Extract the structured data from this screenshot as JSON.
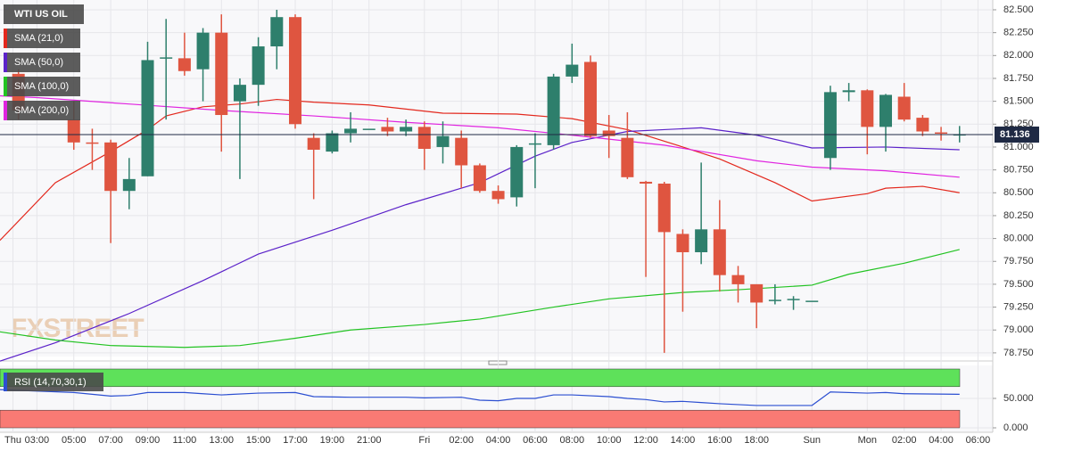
{
  "chart_data": [
    {
      "type": "candlestick",
      "title": "WTI US OIL",
      "watermark": "FXSTREET",
      "up_color": "#2e7f6c",
      "down_color": "#df5540",
      "x": [
        0,
        3,
        4,
        5,
        6,
        7,
        8,
        9,
        10,
        11,
        12,
        13,
        14,
        15,
        16,
        17,
        18,
        19,
        20,
        21,
        22,
        23,
        24,
        25,
        26,
        27,
        28,
        29,
        30,
        31,
        32,
        33,
        34,
        35,
        36,
        37,
        38,
        39,
        40,
        41,
        42,
        43,
        44,
        45,
        46,
        47,
        48,
        49,
        50,
        51
      ],
      "open": [
        81.8,
        81.3,
        81.05,
        81.05,
        80.52,
        80.68,
        81.97,
        81.97,
        81.85,
        82.25,
        81.5,
        81.68,
        82.1,
        82.42,
        81.1,
        80.95,
        81.15,
        81.2,
        81.22,
        81.17,
        81.22,
        81.0,
        81.1,
        80.8,
        80.52,
        80.45,
        81.03,
        81.02,
        81.77,
        81.93,
        81.18,
        81.1,
        80.62,
        80.6,
        80.05,
        79.85,
        80.1,
        79.6,
        79.5,
        79.32,
        79.33,
        79.32,
        80.88,
        81.6,
        81.62,
        81.22,
        81.55,
        81.32,
        81.16,
        81.13
      ],
      "high": [
        81.85,
        81.5,
        81.2,
        81.08,
        80.88,
        82.15,
        82.4,
        82.25,
        82.3,
        82.45,
        81.75,
        82.2,
        82.5,
        82.45,
        81.15,
        81.18,
        81.38,
        81.2,
        81.32,
        81.3,
        81.28,
        81.28,
        81.18,
        80.82,
        80.58,
        81.02,
        81.15,
        81.8,
        82.13,
        82.0,
        81.35,
        81.38,
        80.63,
        80.62,
        80.1,
        80.83,
        80.42,
        79.7,
        79.5,
        79.5,
        79.37,
        79.32,
        81.67,
        81.7,
        81.63,
        81.58,
        81.7,
        81.35,
        81.22,
        81.23
      ],
      "low": [
        81.3,
        80.97,
        80.75,
        79.95,
        80.32,
        80.68,
        81.3,
        81.78,
        81.5,
        80.95,
        80.65,
        81.45,
        81.85,
        81.2,
        80.43,
        80.93,
        81.05,
        81.2,
        81.12,
        81.12,
        80.75,
        80.82,
        80.55,
        80.5,
        80.38,
        80.35,
        80.55,
        80.97,
        81.7,
        81.1,
        80.88,
        80.65,
        79.58,
        78.75,
        79.2,
        79.72,
        79.42,
        79.3,
        79.02,
        79.28,
        79.22,
        79.32,
        80.75,
        81.5,
        80.92,
        80.95,
        81.28,
        81.12,
        81.07,
        81.05
      ],
      "close": [
        81.4,
        81.05,
        81.04,
        80.52,
        80.65,
        81.95,
        81.98,
        81.83,
        82.25,
        81.35,
        81.68,
        82.1,
        82.42,
        81.25,
        80.97,
        81.15,
        81.2,
        81.2,
        81.17,
        81.22,
        80.98,
        81.12,
        80.8,
        80.52,
        80.43,
        81.0,
        81.04,
        81.77,
        81.9,
        81.12,
        81.12,
        80.67,
        80.6,
        80.07,
        79.85,
        80.1,
        79.6,
        79.5,
        79.3,
        79.33,
        79.34,
        79.32,
        81.6,
        81.62,
        81.22,
        81.57,
        81.3,
        81.17,
        81.15,
        81.14
      ],
      "series": [
        {
          "name": "SMA (21,0)",
          "color": "#e3281d",
          "x": [
            -1,
            2,
            5,
            7,
            8,
            10,
            12,
            14,
            16,
            19,
            23,
            27,
            30,
            33,
            36,
            38,
            41,
            43,
            46,
            47,
            49,
            51
          ],
          "values": [
            79.98,
            80.61,
            80.95,
            81.19,
            81.34,
            81.44,
            81.47,
            81.52,
            81.49,
            81.46,
            81.37,
            81.36,
            81.31,
            81.19,
            81.0,
            80.87,
            80.61,
            80.41,
            80.49,
            80.55,
            80.57,
            80.5
          ]
        },
        {
          "name": "SMA (50,0)",
          "color": "#5b22c9",
          "x": [
            -1,
            2,
            6,
            10,
            13,
            17,
            21,
            25,
            28,
            30,
            33,
            35,
            37,
            40,
            43,
            47,
            51
          ],
          "values": [
            78.66,
            78.86,
            79.18,
            79.54,
            79.83,
            80.09,
            80.37,
            80.61,
            80.9,
            81.05,
            81.17,
            81.19,
            81.21,
            81.13,
            80.99,
            81.0,
            80.97
          ]
        },
        {
          "name": "SMA (100,0)",
          "color": "#22c322",
          "x": [
            -1,
            2,
            5,
            9,
            12,
            15,
            18,
            22,
            25,
            29,
            32,
            36,
            39,
            43,
            45,
            48,
            51
          ],
          "values": [
            78.98,
            78.89,
            78.83,
            78.81,
            78.83,
            78.91,
            79.0,
            79.06,
            79.12,
            79.25,
            79.34,
            79.41,
            79.44,
            79.49,
            79.61,
            79.73,
            79.88
          ]
        },
        {
          "name": "SMA (200,0)",
          "color": "#e024e0",
          "x": [
            -1,
            1,
            6,
            11,
            16,
            21,
            26,
            30,
            35,
            40,
            43,
            47,
            51
          ],
          "values": [
            81.56,
            81.54,
            81.47,
            81.4,
            81.34,
            81.27,
            81.21,
            81.13,
            81.02,
            80.85,
            80.78,
            80.74,
            80.67
          ]
        }
      ],
      "last_price": {
        "value": 81.136,
        "label": "81.136"
      },
      "last_price_color": "#1f2a44",
      "xlim": [
        -1,
        52.8
      ],
      "ylim": [
        78.71,
        82.607
      ],
      "yticks": [
        {
          "value": 82.5,
          "label": "82.500"
        },
        {
          "value": 82.25,
          "label": "82.250"
        },
        {
          "value": 82.0,
          "label": "82.000"
        },
        {
          "value": 81.75,
          "label": "81.750"
        },
        {
          "value": 81.5,
          "label": "81.500"
        },
        {
          "value": 81.25,
          "label": "81.250"
        },
        {
          "value": 81.0,
          "label": "81.000"
        },
        {
          "value": 80.75,
          "label": "80.750"
        },
        {
          "value": 80.5,
          "label": "80.500"
        },
        {
          "value": 80.25,
          "label": "80.250"
        },
        {
          "value": 80.0,
          "label": "80.000"
        },
        {
          "value": 79.75,
          "label": "79.750"
        },
        {
          "value": 79.5,
          "label": "79.500"
        },
        {
          "value": 79.25,
          "label": "79.250"
        },
        {
          "value": 79.0,
          "label": "79.000"
        },
        {
          "value": 78.75,
          "label": "78.750"
        }
      ],
      "xticks": [
        {
          "value": -0.3,
          "label": "Thu"
        },
        {
          "value": 1,
          "label": "03:00"
        },
        {
          "value": 3,
          "label": "05:00"
        },
        {
          "value": 5,
          "label": "07:00"
        },
        {
          "value": 7,
          "label": "09:00"
        },
        {
          "value": 9,
          "label": "11:00"
        },
        {
          "value": 11,
          "label": "13:00"
        },
        {
          "value": 13,
          "label": "15:00"
        },
        {
          "value": 15,
          "label": "17:00"
        },
        {
          "value": 17,
          "label": "19:00"
        },
        {
          "value": 19,
          "label": "21:00"
        },
        {
          "value": 22,
          "label": "Fri"
        },
        {
          "value": 24,
          "label": "02:00"
        },
        {
          "value": 26,
          "label": "04:00"
        },
        {
          "value": 28,
          "label": "06:00"
        },
        {
          "value": 30,
          "label": "08:00"
        },
        {
          "value": 32,
          "label": "10:00"
        },
        {
          "value": 34,
          "label": "12:00"
        },
        {
          "value": 36,
          "label": "14:00"
        },
        {
          "value": 38,
          "label": "16:00"
        },
        {
          "value": 40,
          "label": "18:00"
        },
        {
          "value": 43,
          "label": "Sun"
        },
        {
          "value": 46,
          "label": "Mon"
        },
        {
          "value": 48,
          "label": "02:00"
        },
        {
          "value": 50,
          "label": "04:00"
        },
        {
          "value": 52,
          "label": "06:00"
        }
      ],
      "grid": true
    },
    {
      "type": "line",
      "series": [
        {
          "name": "RSI (14,70,30,1)",
          "color": "#2c4fd1",
          "x": [
            -1,
            3,
            5,
            6,
            7,
            9,
            10,
            11,
            13,
            15,
            16,
            18,
            21,
            22,
            24,
            25,
            26,
            27,
            28,
            29,
            30,
            32,
            33,
            34,
            35,
            36,
            37,
            38,
            40,
            43,
            44,
            46,
            47,
            48,
            51
          ],
          "values": [
            65,
            60,
            54,
            55,
            60,
            60,
            58,
            56,
            59,
            60,
            53,
            52,
            52,
            51,
            52,
            47,
            46,
            50,
            50,
            56,
            56,
            53,
            50,
            48,
            44,
            45,
            43,
            41,
            38,
            38,
            61,
            59,
            60,
            58,
            57
          ]
        }
      ],
      "overbought": 70,
      "oversold": 30,
      "overbought_color": "#5ee15a",
      "oversold_color": "#f97a74",
      "xlim": [
        -1,
        52.8
      ],
      "ylim": [
        0,
        100
      ],
      "yticks": [
        {
          "value": 50,
          "label": "50.000"
        },
        {
          "value": 0,
          "label": "0.000"
        }
      ]
    }
  ]
}
